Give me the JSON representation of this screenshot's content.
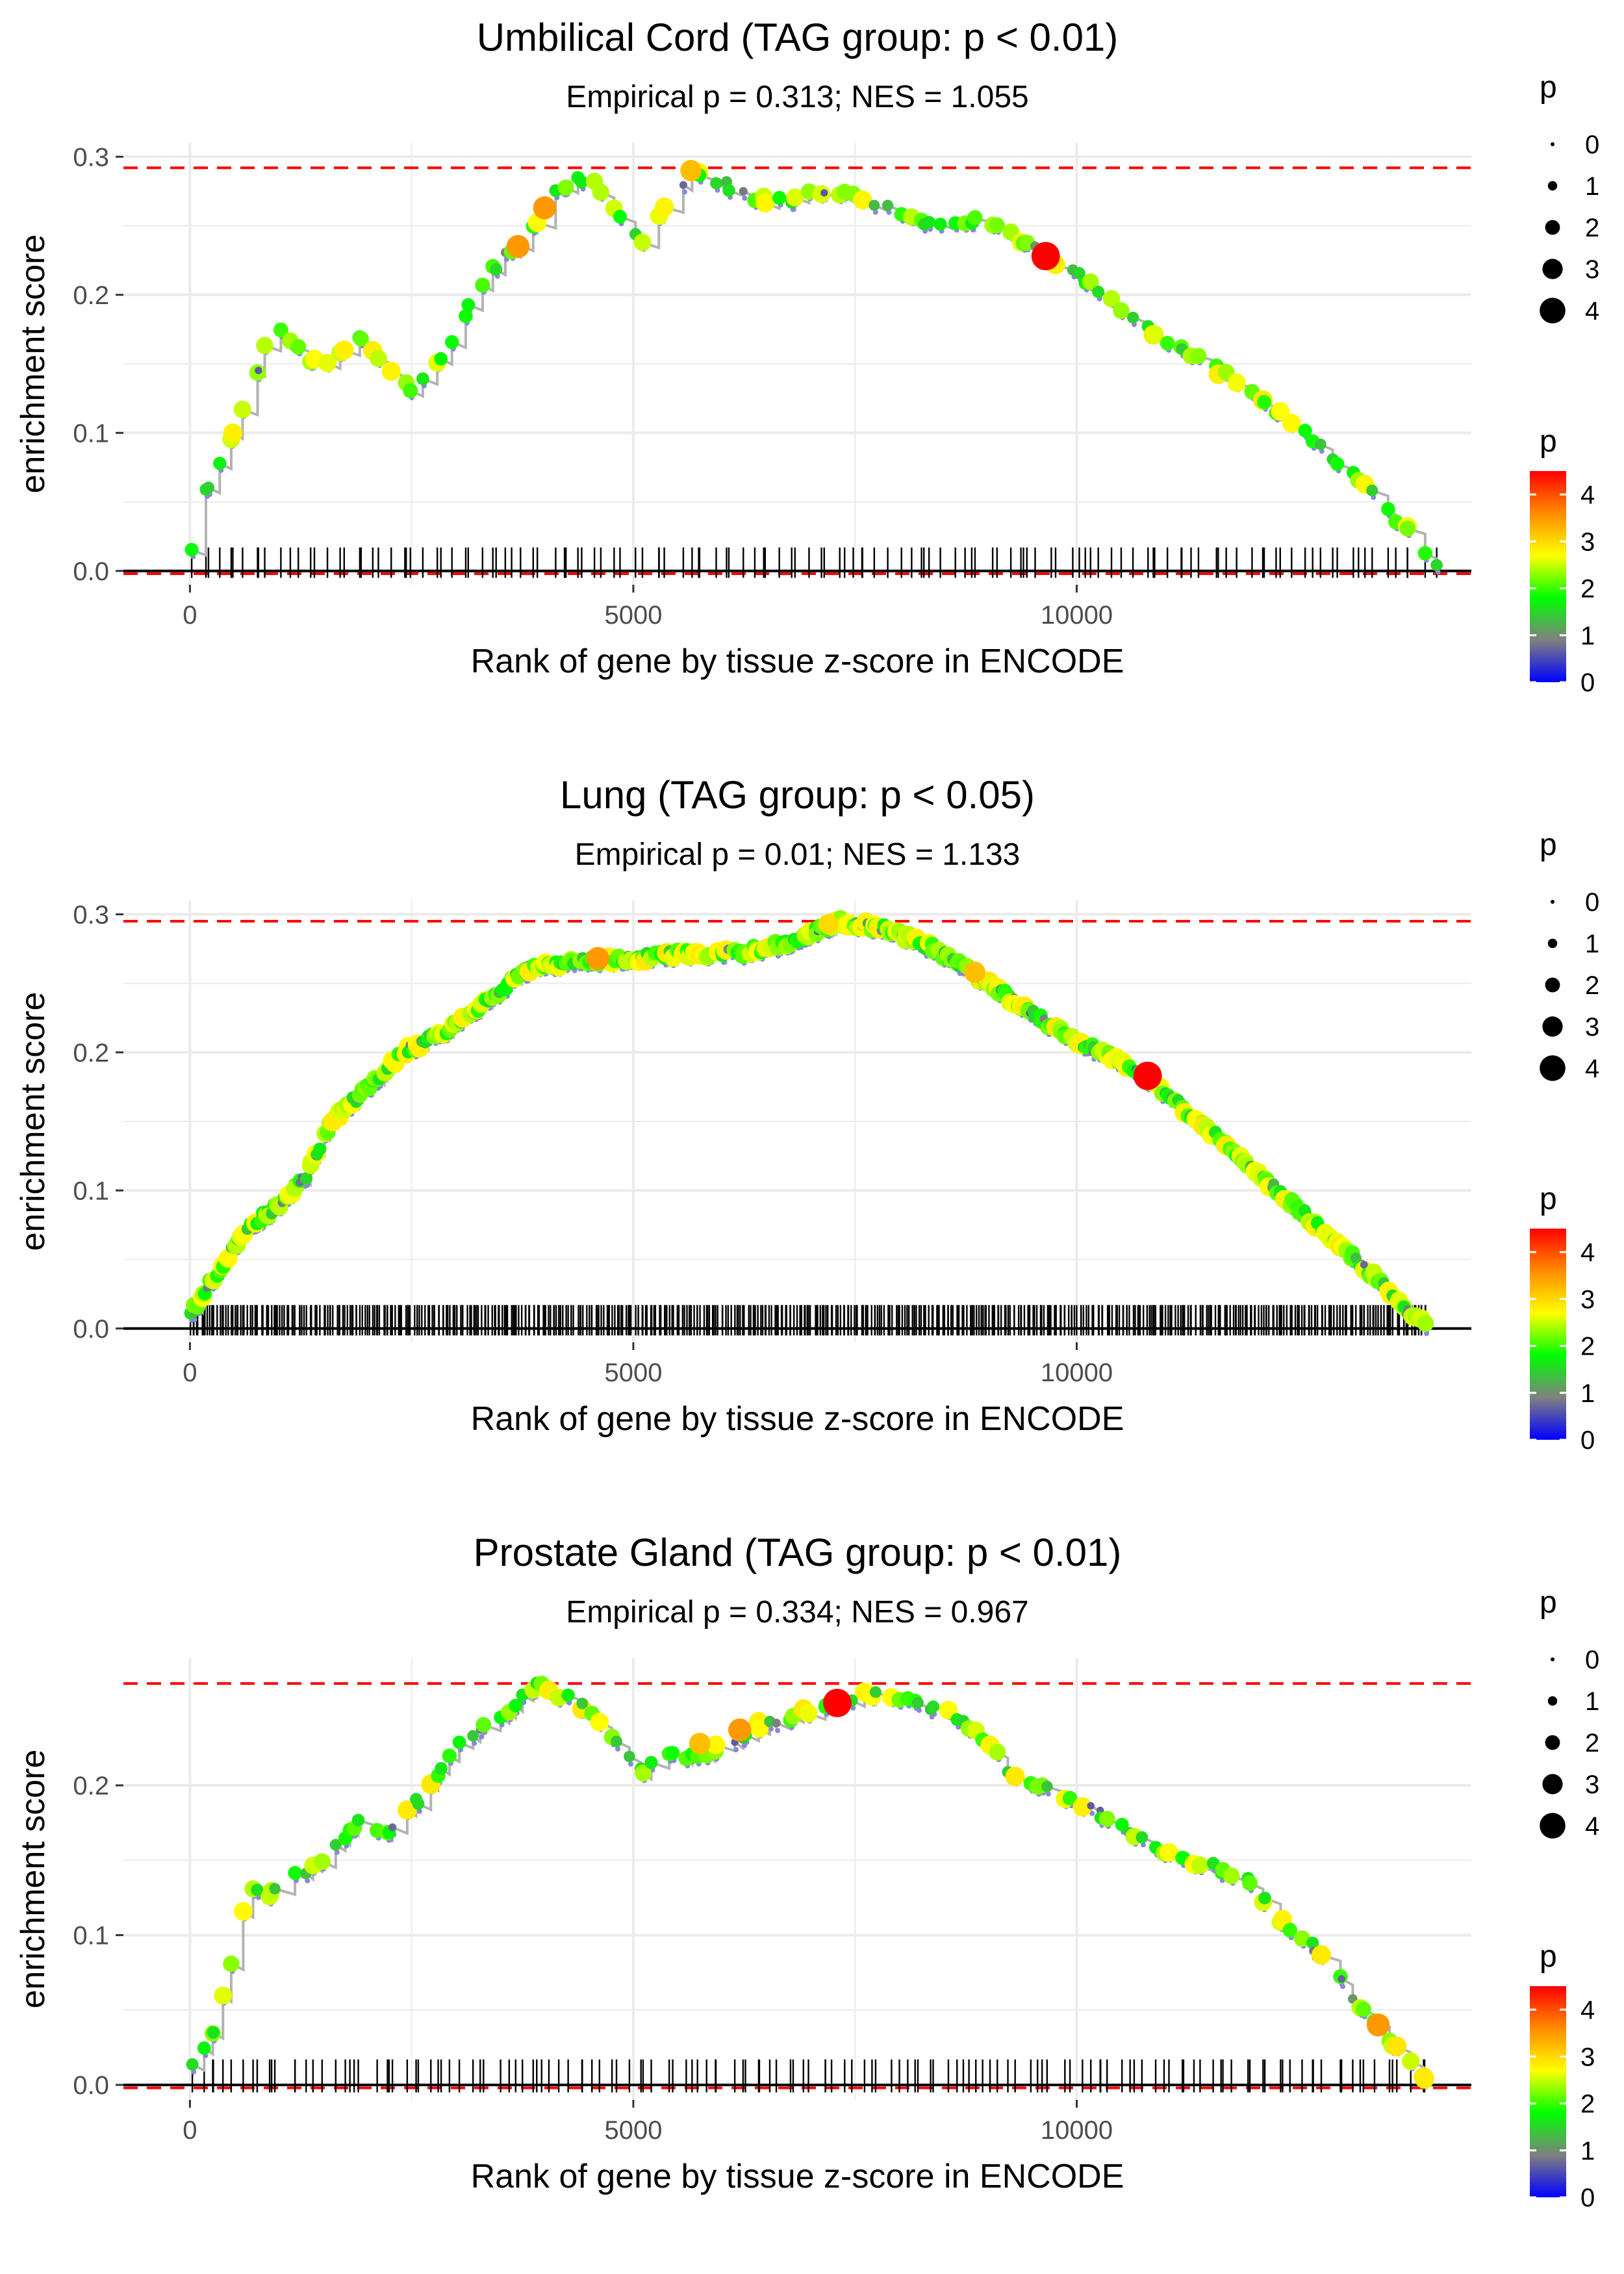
{
  "figure": {
    "colors": {
      "gradient": [
        "#0000ff",
        "#808080",
        "#00ff00",
        "#ffff00",
        "#ff8c00",
        "#ff0000"
      ],
      "max_line": "#ff0000",
      "curve": "#b3b3b3",
      "grid": "#ebebeb",
      "text": "#000000",
      "tick_text": "#4d4d4d"
    }
  },
  "chart_data": [
    {
      "type": "scatter",
      "title": "Umbilical Cord (TAG group: p < 0.01)",
      "subtitle": "Empirical p = 0.313; NES = 1.055",
      "xlabel": "Rank of gene by tissue z-score in ENCODE",
      "ylabel": "enrichment score",
      "xlim": [
        -750,
        14450
      ],
      "ylim": [
        -0.01,
        0.31
      ],
      "xticks": [
        0,
        5000,
        10000
      ],
      "yticks": [
        0.0,
        0.1,
        0.2,
        0.3
      ],
      "ytick_labels": [
        "0.0",
        "0.1",
        "0.2",
        "0.3"
      ],
      "max_es": 0.292,
      "min_es": -0.002,
      "legend_size_title": "p",
      "legend_size_values": [
        "0",
        "1",
        "2",
        "3",
        "4"
      ],
      "legend_color_title": "p",
      "legend_color_ticks": [
        "0",
        "1",
        "2",
        "3",
        "4"
      ],
      "n_genes": 138,
      "curve_anchors": [
        [
          0,
          0.012
        ],
        [
          150,
          0.055
        ],
        [
          450,
          0.095
        ],
        [
          650,
          0.125
        ],
        [
          900,
          0.172
        ],
        [
          1050,
          0.176
        ],
        [
          1300,
          0.155
        ],
        [
          1500,
          0.148
        ],
        [
          1750,
          0.158
        ],
        [
          1900,
          0.168
        ],
        [
          2100,
          0.155
        ],
        [
          2500,
          0.13
        ],
        [
          2750,
          0.145
        ],
        [
          3000,
          0.17
        ],
        [
          3200,
          0.2
        ],
        [
          3500,
          0.225
        ],
        [
          3800,
          0.24
        ],
        [
          4100,
          0.275
        ],
        [
          4500,
          0.285
        ],
        [
          5100,
          0.24
        ],
        [
          5400,
          0.265
        ],
        [
          5700,
          0.29
        ],
        [
          5900,
          0.285
        ],
        [
          6300,
          0.27
        ],
        [
          6700,
          0.268
        ],
        [
          7200,
          0.275
        ],
        [
          7600,
          0.27
        ],
        [
          8100,
          0.255
        ],
        [
          8600,
          0.25
        ],
        [
          9000,
          0.255
        ],
        [
          9600,
          0.23
        ],
        [
          10100,
          0.21
        ],
        [
          10800,
          0.175
        ],
        [
          11600,
          0.145
        ],
        [
          12400,
          0.11
        ],
        [
          13200,
          0.065
        ],
        [
          13800,
          0.025
        ],
        [
          14000,
          0.002
        ]
      ],
      "highlight_points": [
        [
          3700,
          0.235,
          3.5
        ],
        [
          4000,
          0.263,
          3.5
        ],
        [
          9650,
          0.228,
          4.5
        ],
        [
          5650,
          0.29,
          3.2
        ]
      ]
    },
    {
      "type": "scatter",
      "title": "Lung (TAG group: p < 0.05)",
      "subtitle": "Empirical p = 0.01; NES = 1.133",
      "xlabel": "Rank of gene by tissue z-score in ENCODE",
      "ylabel": "enrichment score",
      "xlim": [
        -750,
        14450
      ],
      "ylim": [
        -0.01,
        0.31
      ],
      "xticks": [
        0,
        5000,
        10000
      ],
      "yticks": [
        0.0,
        0.1,
        0.2,
        0.3
      ],
      "ytick_labels": [
        "0.0",
        "0.1",
        "0.2",
        "0.3"
      ],
      "max_es": 0.295,
      "min_es": null,
      "legend_size_title": "p",
      "legend_size_values": [
        "0",
        "1",
        "2",
        "3",
        "4"
      ],
      "legend_color_title": "p",
      "legend_color_ticks": [
        "0",
        "1",
        "2",
        "3",
        "4"
      ],
      "n_genes": 560,
      "curve_anchors": [
        [
          0,
          0.01
        ],
        [
          250,
          0.035
        ],
        [
          600,
          0.07
        ],
        [
          1000,
          0.09
        ],
        [
          1300,
          0.11
        ],
        [
          1600,
          0.15
        ],
        [
          2000,
          0.175
        ],
        [
          2400,
          0.2
        ],
        [
          3000,
          0.22
        ],
        [
          3400,
          0.24
        ],
        [
          3800,
          0.26
        ],
        [
          4300,
          0.265
        ],
        [
          5000,
          0.268
        ],
        [
          5600,
          0.272
        ],
        [
          6200,
          0.272
        ],
        [
          6800,
          0.28
        ],
        [
          7300,
          0.295
        ],
        [
          7800,
          0.29
        ],
        [
          8400,
          0.275
        ],
        [
          9000,
          0.25
        ],
        [
          9800,
          0.215
        ],
        [
          10600,
          0.19
        ],
        [
          11200,
          0.16
        ],
        [
          12000,
          0.115
        ],
        [
          12800,
          0.07
        ],
        [
          13400,
          0.035
        ],
        [
          13750,
          0.01
        ],
        [
          13950,
          0.002
        ]
      ],
      "highlight_points": [
        [
          4600,
          0.268,
          3.5
        ],
        [
          10800,
          0.183,
          4.5
        ],
        [
          7200,
          0.293,
          3.0
        ],
        [
          8850,
          0.258,
          3.2
        ]
      ]
    },
    {
      "type": "scatter",
      "title": "Prostate Gland (TAG group: p < 0.01)",
      "subtitle": "Empirical p = 0.334; NES = 0.967",
      "xlabel": "Rank of gene by tissue z-score in ENCODE",
      "ylabel": "enrichment score",
      "xlim": [
        -750,
        14450
      ],
      "ylim": [
        -0.01,
        0.285
      ],
      "xticks": [
        0,
        5000,
        10000
      ],
      "yticks": [
        0.0,
        0.1,
        0.2
      ],
      "ytick_labels": [
        "0.0",
        "0.1",
        "0.2"
      ],
      "max_es": 0.268,
      "min_es": -0.002,
      "legend_size_title": "p",
      "legend_size_values": [
        "0",
        "1",
        "2",
        "3",
        "4"
      ],
      "legend_color_title": "p",
      "legend_color_ticks": [
        "0",
        "1",
        "2",
        "3",
        "4"
      ],
      "n_genes": 150,
      "curve_anchors": [
        [
          0,
          0.012
        ],
        [
          250,
          0.035
        ],
        [
          450,
          0.075
        ],
        [
          650,
          0.128
        ],
        [
          900,
          0.128
        ],
        [
          1200,
          0.14
        ],
        [
          1600,
          0.155
        ],
        [
          1900,
          0.175
        ],
        [
          2300,
          0.17
        ],
        [
          2700,
          0.2
        ],
        [
          3000,
          0.225
        ],
        [
          3300,
          0.24
        ],
        [
          3600,
          0.25
        ],
        [
          3900,
          0.268
        ],
        [
          4400,
          0.255
        ],
        [
          5100,
          0.21
        ],
        [
          5300,
          0.225
        ],
        [
          5600,
          0.22
        ],
        [
          6000,
          0.225
        ],
        [
          6400,
          0.24
        ],
        [
          6900,
          0.248
        ],
        [
          7300,
          0.255
        ],
        [
          7700,
          0.262
        ],
        [
          8100,
          0.255
        ],
        [
          8500,
          0.25
        ],
        [
          9000,
          0.228
        ],
        [
          9300,
          0.205
        ],
        [
          9800,
          0.195
        ],
        [
          10300,
          0.18
        ],
        [
          10800,
          0.16
        ],
        [
          11400,
          0.148
        ],
        [
          11900,
          0.14
        ],
        [
          12300,
          0.11
        ],
        [
          12800,
          0.085
        ],
        [
          13300,
          0.045
        ],
        [
          13600,
          0.025
        ],
        [
          13950,
          0.002
        ]
      ],
      "highlight_points": [
        [
          7300,
          0.255,
          4.5
        ],
        [
          6200,
          0.237,
          3.5
        ],
        [
          13400,
          0.04,
          3.5
        ],
        [
          5750,
          0.228,
          3.2
        ]
      ]
    }
  ]
}
